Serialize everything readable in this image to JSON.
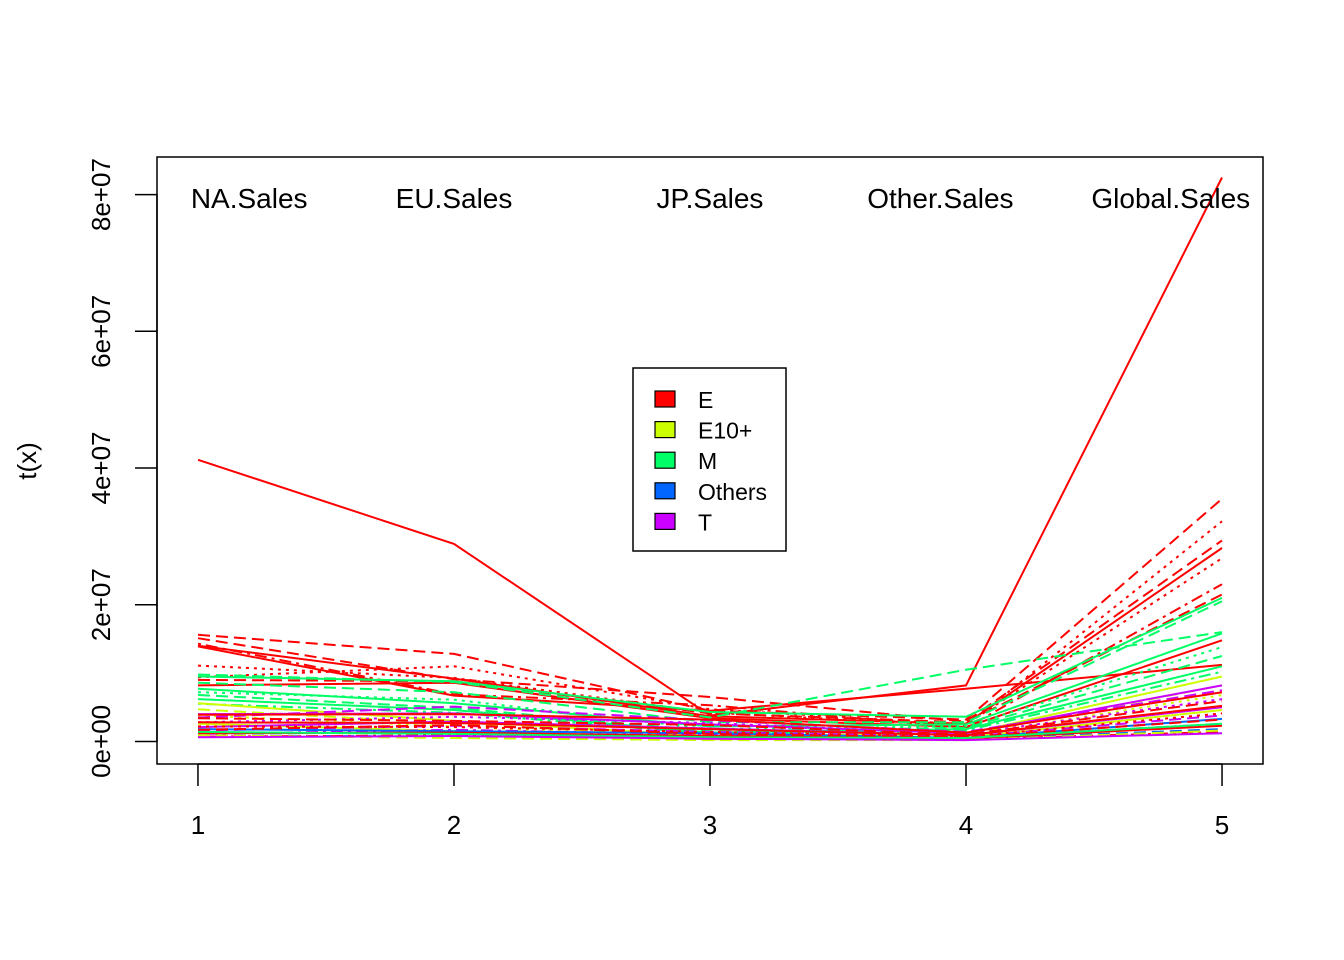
{
  "chart_data": {
    "type": "line",
    "title": "",
    "xlabel": "",
    "ylabel": "t(x)",
    "xlim": [
      0.84,
      5.16
    ],
    "ylim": [
      -3300000,
      85500000
    ],
    "x": [
      1,
      2,
      3,
      4,
      5
    ],
    "x_tick_labels": [
      "1",
      "2",
      "3",
      "4",
      "5"
    ],
    "y_ticks": [
      0,
      20000000,
      40000000,
      60000000,
      80000000
    ],
    "y_tick_labels": [
      "0e+00",
      "2e+07",
      "4e+07",
      "6e+07",
      "8e+07"
    ],
    "annotations": [
      {
        "text": "NA.Sales",
        "x": 1.2,
        "y": 79500000
      },
      {
        "text": "EU.Sales",
        "x": 2.0,
        "y": 79500000
      },
      {
        "text": "JP.Sales",
        "x": 3.0,
        "y": 79500000
      },
      {
        "text": "Other.Sales",
        "x": 3.9,
        "y": 79500000
      },
      {
        "text": "Global.Sales",
        "x": 4.8,
        "y": 79500000
      }
    ],
    "legend": {
      "position": "center",
      "entries": [
        {
          "label": "E",
          "color": "#FF0000"
        },
        {
          "label": "E10+",
          "color": "#CCFF00"
        },
        {
          "label": "M",
          "color": "#00FF66"
        },
        {
          "label": "Others",
          "color": "#0066FF"
        },
        {
          "label": "T",
          "color": "#CC00FF"
        }
      ]
    },
    "series": [
      {
        "name": "E",
        "color": "#FF0000",
        "lty": "solid",
        "values": [
          41200000,
          28900000,
          3800000,
          8200000,
          82500000
        ]
      },
      {
        "name": "E",
        "color": "#FF0000",
        "lty": "solid",
        "values": [
          14000000,
          9200000,
          3700000,
          2600000,
          28300000
        ]
      },
      {
        "name": "E",
        "color": "#FF0000",
        "lty": "dashed",
        "values": [
          15600000,
          12800000,
          4500000,
          3200000,
          35500000
        ]
      },
      {
        "name": "E",
        "color": "#FF0000",
        "lty": "dashed",
        "values": [
          15100000,
          9100000,
          6500000,
          2900000,
          29400000
        ]
      },
      {
        "name": "E",
        "color": "#FF0000",
        "lty": "dotted",
        "values": [
          11100000,
          9300000,
          4200000,
          2300000,
          32200000
        ]
      },
      {
        "name": "E",
        "color": "#FF0000",
        "lty": "dotdash",
        "values": [
          14300000,
          6900000,
          5300000,
          2000000,
          23000000
        ]
      },
      {
        "name": "E",
        "color": "#FF0000",
        "lty": "dotted",
        "values": [
          9400000,
          11000000,
          4700000,
          2500000,
          26800000
        ]
      },
      {
        "name": "E",
        "color": "#FF0000",
        "lty": "dashed",
        "values": [
          9000000,
          8800000,
          4100000,
          2800000,
          21500000
        ]
      },
      {
        "name": "E",
        "color": "#FF0000",
        "lty": "solid",
        "values": [
          13900000,
          6700000,
          4500000,
          7700000,
          11200000
        ]
      },
      {
        "name": "E",
        "color": "#FF0000",
        "lty": "solid",
        "values": [
          8200000,
          8600000,
          3400000,
          2100000,
          14800000
        ]
      },
      {
        "name": "M",
        "color": "#00FF66",
        "lty": "dashed",
        "values": [
          9800000,
          8700000,
          3500000,
          10500000,
          16000000
        ]
      },
      {
        "name": "M",
        "color": "#00FF66",
        "lty": "solid",
        "values": [
          9500000,
          8800000,
          4300000,
          3600000,
          21000000
        ]
      },
      {
        "name": "M",
        "color": "#00FF66",
        "lty": "dashed",
        "values": [
          8600000,
          7200000,
          2800000,
          2800000,
          20500000
        ]
      },
      {
        "name": "M",
        "color": "#00FF66",
        "lty": "solid",
        "values": [
          7700000,
          5600000,
          2200000,
          2500000,
          15800000
        ]
      },
      {
        "name": "M",
        "color": "#00FF66",
        "lty": "dotted",
        "values": [
          7200000,
          6100000,
          1800000,
          2200000,
          13800000
        ]
      },
      {
        "name": "M",
        "color": "#00FF66",
        "lty": "dashed",
        "values": [
          6800000,
          4900000,
          1500000,
          2000000,
          12500000
        ]
      },
      {
        "name": "M",
        "color": "#00FF66",
        "lty": "solid",
        "values": [
          6200000,
          4600000,
          1300000,
          1800000,
          11000000
        ]
      },
      {
        "name": "M",
        "color": "#00FF66",
        "lty": "dotdash",
        "values": [
          5500000,
          4200000,
          1100000,
          1600000,
          10200000
        ]
      },
      {
        "name": "E10+",
        "color": "#CCFF00",
        "lty": "solid",
        "values": [
          5600000,
          3000000,
          800000,
          1100000,
          9500000
        ]
      },
      {
        "name": "E10+",
        "color": "#CCFF00",
        "lty": "dashed",
        "values": [
          4700000,
          2600000,
          700000,
          1000000,
          8200000
        ]
      },
      {
        "name": "E10+",
        "color": "#CCFF00",
        "lty": "dotted",
        "values": [
          3800000,
          2200000,
          500000,
          900000,
          6800000
        ]
      },
      {
        "name": "E10+",
        "color": "#CCFF00",
        "lty": "solid",
        "values": [
          2600000,
          1500000,
          300000,
          600000,
          4600000
        ]
      },
      {
        "name": "T",
        "color": "#CC00FF",
        "lty": "solid",
        "values": [
          4000000,
          4100000,
          2500000,
          1200000,
          8200000
        ]
      },
      {
        "name": "T",
        "color": "#CC00FF",
        "lty": "dashed",
        "values": [
          3500000,
          5100000,
          3100000,
          1400000,
          7500000
        ]
      },
      {
        "name": "T",
        "color": "#CC00FF",
        "lty": "dotted",
        "values": [
          2800000,
          3600000,
          2700000,
          1100000,
          6200000
        ]
      },
      {
        "name": "T",
        "color": "#CC00FF",
        "lty": "solid",
        "values": [
          2100000,
          2900000,
          1900000,
          900000,
          5000000
        ]
      },
      {
        "name": "T",
        "color": "#CC00FF",
        "lty": "dashed",
        "values": [
          1600000,
          2300000,
          1400000,
          700000,
          3800000
        ]
      },
      {
        "name": "T",
        "color": "#CC00FF",
        "lty": "dotdash",
        "values": [
          1100000,
          1700000,
          1000000,
          500000,
          2600000
        ]
      },
      {
        "name": "Others",
        "color": "#0066FF",
        "lty": "solid",
        "values": [
          1800000,
          1500000,
          1200000,
          500000,
          3300000
        ]
      },
      {
        "name": "Others",
        "color": "#0066FF",
        "lty": "dashed",
        "values": [
          900000,
          700000,
          500000,
          300000,
          1800000
        ]
      },
      {
        "name": "E",
        "color": "#FF0000",
        "lty": "solid",
        "values": [
          3900000,
          4000000,
          3200000,
          1300000,
          7200000
        ]
      },
      {
        "name": "E",
        "color": "#FF0000",
        "lty": "dashed",
        "values": [
          3400000,
          3000000,
          2400000,
          1000000,
          5900000
        ]
      },
      {
        "name": "E",
        "color": "#FF0000",
        "lty": "solid",
        "values": [
          2800000,
          2700000,
          1800000,
          900000,
          5200000
        ]
      },
      {
        "name": "E",
        "color": "#FF0000",
        "lty": "dotted",
        "values": [
          2200000,
          2100000,
          1400000,
          700000,
          4100000
        ]
      },
      {
        "name": "E",
        "color": "#FF0000",
        "lty": "dashed",
        "values": [
          1700000,
          2400000,
          1100000,
          600000,
          3200000
        ]
      },
      {
        "name": "E",
        "color": "#FF0000",
        "lty": "solid",
        "values": [
          1200000,
          1300000,
          800000,
          400000,
          2300000
        ]
      },
      {
        "name": "E",
        "color": "#FF0000",
        "lty": "dotdash",
        "values": [
          700000,
          900000,
          500000,
          300000,
          1400000
        ]
      },
      {
        "name": "M",
        "color": "#00FF66",
        "lty": "solid",
        "values": [
          1400000,
          1100000,
          600000,
          500000,
          2600000
        ]
      },
      {
        "name": "E10+",
        "color": "#CCFF00",
        "lty": "dashed",
        "values": [
          900000,
          500000,
          200000,
          200000,
          1600000
        ]
      },
      {
        "name": "T",
        "color": "#CC00FF",
        "lty": "solid",
        "values": [
          600000,
          800000,
          400000,
          200000,
          1200000
        ]
      }
    ]
  }
}
